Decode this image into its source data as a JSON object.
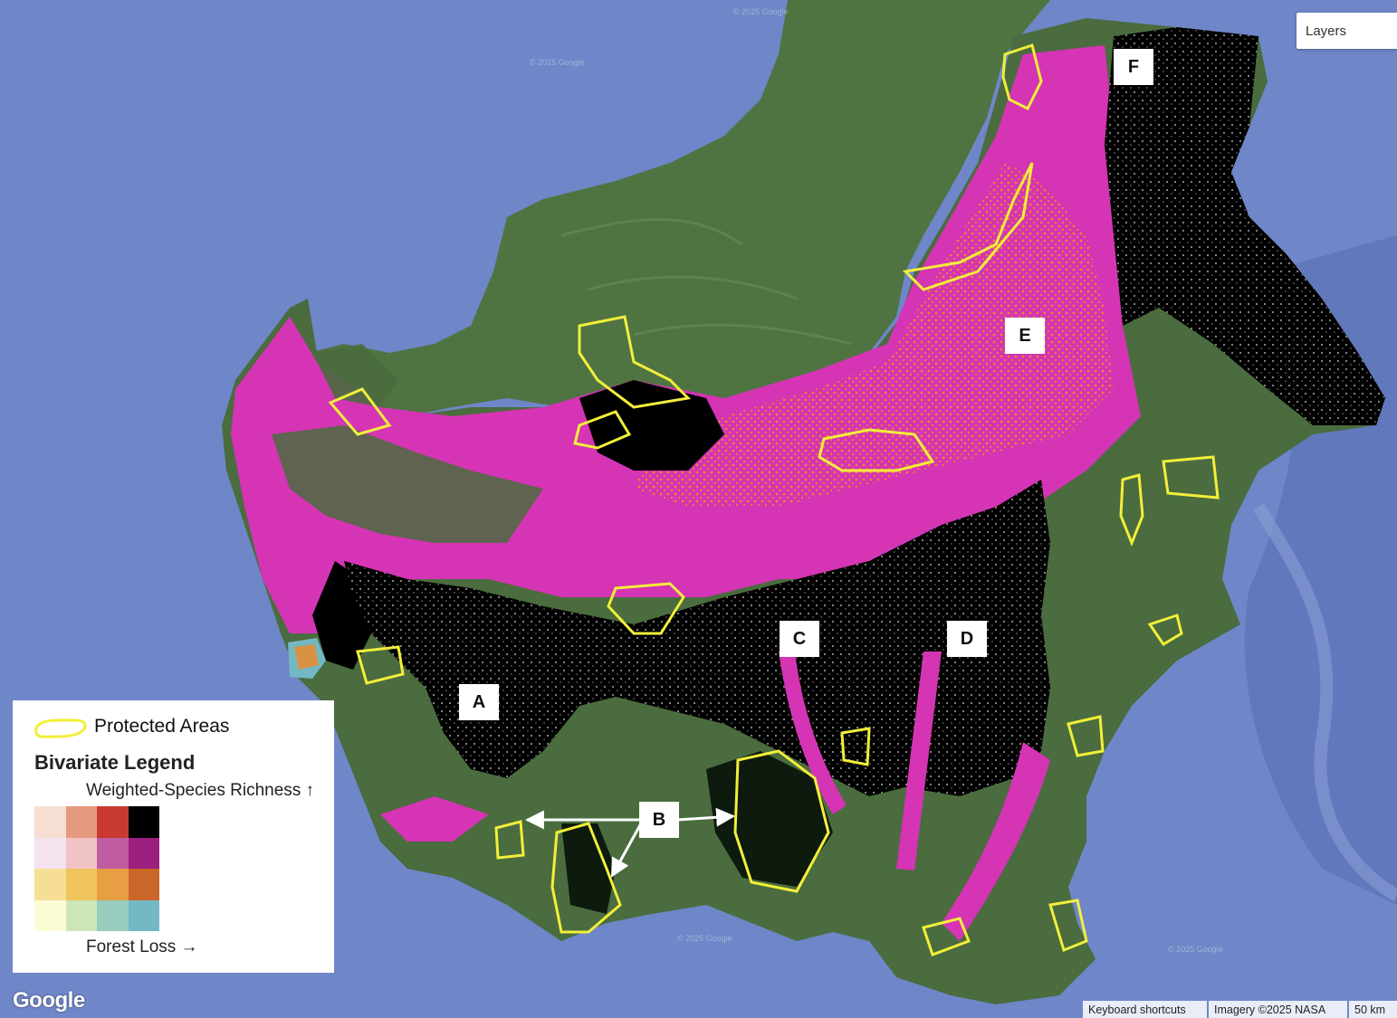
{
  "map": {
    "labels": [
      {
        "id": "A",
        "text": "A"
      },
      {
        "id": "B",
        "text": "B"
      },
      {
        "id": "C",
        "text": "C"
      },
      {
        "id": "D",
        "text": "D"
      },
      {
        "id": "E",
        "text": "E"
      },
      {
        "id": "F",
        "text": "F"
      }
    ],
    "colors": {
      "ocean": "#6f86c8",
      "land": "#4d6e3f",
      "land_dark": "#3b5a31",
      "high_richness_high_loss": "#000000",
      "loss_magenta": "#d534b4",
      "loss_orange": "#f08a24",
      "protected_outline": "#f2ef3a"
    }
  },
  "controls": {
    "layers_label": "Layers"
  },
  "legend": {
    "protected_areas_label": "Protected Areas",
    "title": "Bivariate Legend",
    "y_axis_label": "Weighted-Species Richness ↑",
    "x_axis_label": "Forest Loss →",
    "grid_colors": [
      [
        "#f6dfd2",
        "#e69a7d",
        "#c83a2f",
        "#000000"
      ],
      [
        "#f4e2ee",
        "#efc3c3",
        "#c05ca0",
        "#9a1f7e"
      ],
      [
        "#f6df94",
        "#efc45c",
        "#e89e42",
        "#cb6629"
      ],
      [
        "#fbfbd6",
        "#cde6b8",
        "#97ccbf",
        "#73b8c3"
      ]
    ]
  },
  "attribution": {
    "keyboard": "Keyboard shortcuts",
    "imagery": "Imagery ©2025 NASA",
    "scale": "50 km",
    "logo": "Google",
    "watermark": "© 2025 Google"
  }
}
